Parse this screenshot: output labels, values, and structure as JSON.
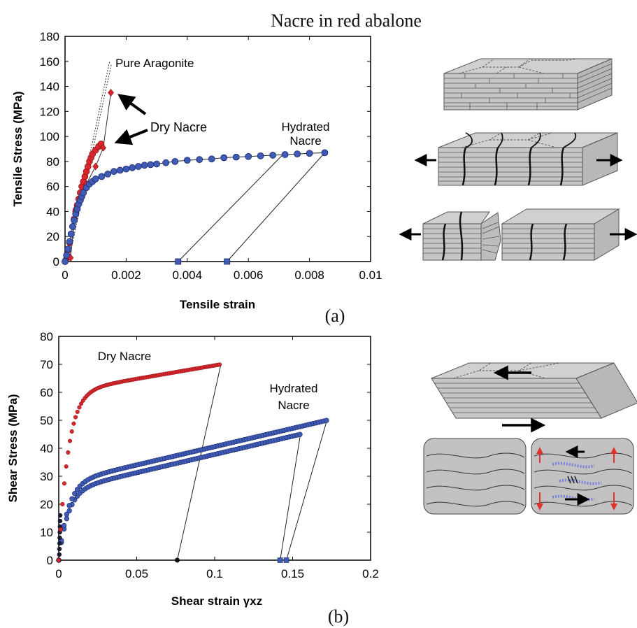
{
  "title": "Nacre in red abalone",
  "chart_data": [
    {
      "type": "scatter",
      "panel_label": "(a)",
      "xlabel": "Tensile strain",
      "ylabel": "Tensile Stress (MPa)",
      "xlim": [
        0,
        0.01
      ],
      "ylim": [
        0,
        180
      ],
      "xticks": [
        0,
        0.002,
        0.004,
        0.006,
        0.008,
        0.01
      ],
      "xtick_labels": [
        "0",
        "0.002",
        "0.004",
        "0.006",
        "0.008",
        "0.01"
      ],
      "yticks": [
        0,
        20,
        40,
        60,
        80,
        100,
        120,
        140,
        160,
        180
      ],
      "ytick_labels": [
        "0",
        "20",
        "40",
        "60",
        "80",
        "100",
        "120",
        "140",
        "160",
        "180"
      ],
      "grid": false,
      "annotations": [
        {
          "text": "Pure Aragonite"
        },
        {
          "text": "Dry Nacre"
        },
        {
          "text": "Hydrated"
        },
        {
          "text": "Nacre"
        }
      ],
      "aragonite_line": [
        [
          8e-05,
          1
        ],
        [
          0.00146,
          160
        ]
      ],
      "series": [
        {
          "label": "Dry Nacre",
          "color": "#d9262c",
          "points": [
            [
              2e-05,
              1
            ],
            [
              6e-05,
              4
            ],
            [
              0.0001,
              9
            ],
            [
              0.00015,
              15
            ],
            [
              0.0002,
              22
            ],
            [
              0.00025,
              28
            ],
            [
              0.0003,
              34
            ],
            [
              0.00035,
              40
            ],
            [
              0.0004,
              45
            ],
            [
              0.00045,
              50
            ],
            [
              0.0005,
              55
            ],
            [
              0.00055,
              60
            ],
            [
              0.0006,
              64
            ],
            [
              0.00065,
              68
            ],
            [
              0.0007,
              72
            ],
            [
              0.00075,
              76
            ],
            [
              0.0008,
              80
            ],
            [
              0.00085,
              83
            ],
            [
              0.0009,
              86
            ],
            [
              0.001,
              89
            ],
            [
              0.0011,
              92
            ],
            [
              0.00118,
              94
            ]
          ]
        },
        {
          "label": "Dry Nacre (diamond)",
          "color": "#d9262c",
          "points": [
            [
              0.00018,
              3
            ],
            [
              0.00035,
              42
            ],
            [
              0.0007,
              62
            ],
            [
              0.001,
              76
            ],
            [
              0.00125,
              91
            ],
            [
              0.0015,
              135
            ]
          ]
        },
        {
          "label": "Hydrated Nacre",
          "color": "#3f5bb5",
          "points": [
            [
              0,
              0
            ],
            [
              5e-05,
              5
            ],
            [
              0.0001,
              10
            ],
            [
              0.00015,
              16
            ],
            [
              0.0002,
              22
            ],
            [
              0.00025,
              28
            ],
            [
              0.0003,
              33
            ],
            [
              0.00035,
              38
            ],
            [
              0.0004,
              42
            ],
            [
              0.00045,
              46
            ],
            [
              0.0005,
              49
            ],
            [
              0.00055,
              52
            ],
            [
              0.0006,
              55
            ],
            [
              0.0007,
              59
            ],
            [
              0.0008,
              62
            ],
            [
              0.0009,
              64
            ],
            [
              0.001,
              66
            ],
            [
              0.0012,
              68
            ],
            [
              0.0014,
              70
            ],
            [
              0.0016,
              72
            ],
            [
              0.0018,
              73
            ],
            [
              0.002,
              74
            ],
            [
              0.0022,
              75
            ],
            [
              0.0024,
              76
            ],
            [
              0.0026,
              77
            ],
            [
              0.0028,
              77.5
            ],
            [
              0.003,
              78
            ],
            [
              0.0033,
              79
            ],
            [
              0.0036,
              80
            ],
            [
              0.004,
              81
            ],
            [
              0.0044,
              81.5
            ],
            [
              0.0048,
              82
            ],
            [
              0.0052,
              83
            ],
            [
              0.0056,
              83.5
            ],
            [
              0.006,
              84
            ],
            [
              0.0064,
              84.5
            ],
            [
              0.0068,
              85
            ],
            [
              0.0072,
              85.5
            ],
            [
              0.0076,
              86
            ],
            [
              0.008,
              86.5
            ],
            [
              0.0085,
              87
            ]
          ]
        },
        {
          "label": "Hydrated Nacre (unload 1)",
          "color": "#3f5bb5",
          "points": [
            [
              0.0037,
              0
            ],
            [
              0.00715,
              86
            ]
          ]
        },
        {
          "label": "Hydrated Nacre (unload 2)",
          "color": "#3f5bb5",
          "points": [
            [
              0.0053,
              0
            ],
            [
              0.0085,
              87
            ]
          ]
        }
      ]
    },
    {
      "type": "scatter",
      "panel_label": "(b)",
      "xlabel": "Shear strain γxz",
      "ylabel": "Shear Stress (MPa)",
      "xlim": [
        0,
        0.2
      ],
      "ylim": [
        0,
        80
      ],
      "xticks": [
        0,
        0.05,
        0.1,
        0.15,
        0.2
      ],
      "xtick_labels": [
        "0",
        "0.05",
        "0.1",
        "0.15",
        "0.2"
      ],
      "yticks": [
        0,
        10,
        20,
        30,
        40,
        50,
        60,
        70,
        80
      ],
      "ytick_labels": [
        "0",
        "10",
        "20",
        "30",
        "40",
        "50",
        "60",
        "70",
        "80"
      ],
      "grid": false,
      "annotations": [
        {
          "text": "Dry Nacre"
        },
        {
          "text": "Hydrated"
        },
        {
          "text": "Nacre"
        }
      ],
      "series": [
        {
          "label": "Dry Nacre",
          "color": "#d9262c",
          "curve": {
            "a": 70,
            "b": 8.5,
            "c": 0.004,
            "xmax": 0.104,
            "step": 0.0012
          },
          "unload": [
            [
              0.104,
              70
            ],
            [
              0.076,
              0
            ]
          ]
        },
        {
          "label": "Hydrated Nacre",
          "color": "#3f5bb5",
          "loops": [
            {
              "a": 45,
              "b": 30,
              "c": 0.005,
              "xmax": 0.155,
              "step": 0.0017,
              "unload": [
                [
                  0.155,
                  45
                ],
                [
                  0.142,
                  0
                ]
              ]
            },
            {
              "a": 50,
              "b": 30,
              "c": 0.005,
              "xmax": 0.172,
              "step": 0.0017,
              "unload": [
                [
                  0.172,
                  50
                ],
                [
                  0.146,
                  0
                ]
              ]
            }
          ]
        }
      ]
    }
  ]
}
